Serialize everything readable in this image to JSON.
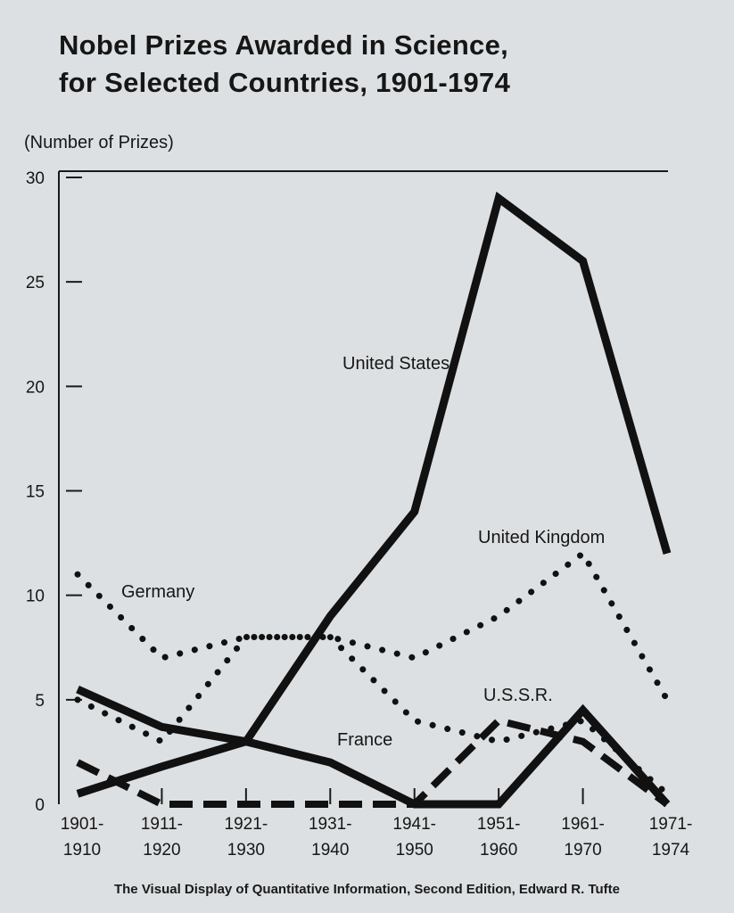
{
  "title_line1": "Nobel Prizes Awarded in Science,",
  "title_line2": "for Selected Countries, 1901-1974",
  "credit": "The Visual Display of Quantitative Information, Second Edition, Edward R. Tufte",
  "chart_data": {
    "type": "line",
    "title": "Nobel Prizes Awarded in Science, for Selected Countries, 1901-1974",
    "ylabel": "(Number of Prizes)",
    "xlabel": "",
    "ylim": [
      0,
      30
    ],
    "yticks": [
      0,
      5,
      10,
      15,
      20,
      25,
      30
    ],
    "categories": [
      [
        "1901-",
        "1910"
      ],
      [
        "1911-",
        "1920"
      ],
      [
        "1921-",
        "1930"
      ],
      [
        "1931-",
        "1940"
      ],
      [
        "1941-",
        "1950"
      ],
      [
        "1951-",
        "1960"
      ],
      [
        "1961-",
        "1970"
      ],
      [
        "1971-",
        "1974"
      ]
    ],
    "grid": false,
    "legend": "labels placed directly on lines",
    "series": [
      {
        "name": "United States",
        "style": "solid",
        "values": [
          0.5,
          1.8,
          3,
          9,
          14,
          29,
          26,
          12
        ]
      },
      {
        "name": "United Kingdom",
        "style": "dotted",
        "values": [
          5,
          3,
          8,
          8,
          7,
          9,
          12,
          5
        ]
      },
      {
        "name": "Germany",
        "style": "dotted",
        "values": [
          11,
          7,
          8,
          8,
          4,
          3,
          4,
          0.5
        ]
      },
      {
        "name": "France",
        "style": "solid",
        "values": [
          5.5,
          3.7,
          3,
          2,
          0,
          0,
          4.5,
          0
        ]
      },
      {
        "name": "U.S.S.R.",
        "style": "dashed",
        "values": [
          2,
          0,
          0,
          0,
          0,
          4,
          3,
          0
        ]
      }
    ]
  }
}
